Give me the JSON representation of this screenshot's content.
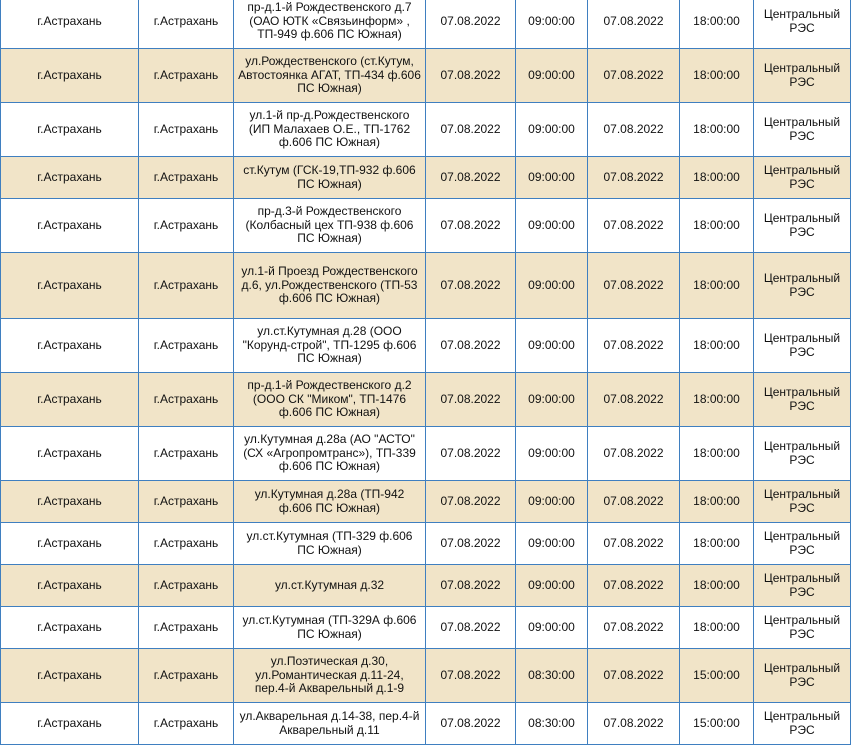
{
  "rows": [
    {
      "locality": "г.Астрахань",
      "city": "г.Астрахань",
      "address": "пр-д.1-й Рождественского д.7 (ОАО ЮТК «Связьинформ» , ТП-949 ф.606 ПС Южная)",
      "start_date": "07.08.2022",
      "start_time": "09:00:00",
      "end_date": "07.08.2022",
      "end_time": "18:00:00",
      "res": "Центральный РЭС"
    },
    {
      "locality": "г.Астрахань",
      "city": "г.Астрахань",
      "address": "ул.Рождественского (ст.Кутум, Автостоянка АГАТ, ТП-434 ф.606 ПС Южная)",
      "start_date": "07.08.2022",
      "start_time": "09:00:00",
      "end_date": "07.08.2022",
      "end_time": "18:00:00",
      "res": "Центральный РЭС"
    },
    {
      "locality": "г.Астрахань",
      "city": "г.Астрахань",
      "address": "ул.1-й пр-д.Рождественского (ИП Малахаев О.Е., ТП-1762 ф.606 ПС Южная)",
      "start_date": "07.08.2022",
      "start_time": "09:00:00",
      "end_date": "07.08.2022",
      "end_time": "18:00:00",
      "res": "Центральный РЭС"
    },
    {
      "locality": "г.Астрахань",
      "city": "г.Астрахань",
      "address": "ст.Кутум (ГСК-19,ТП-932 ф.606 ПС Южная)",
      "start_date": "07.08.2022",
      "start_time": "09:00:00",
      "end_date": "07.08.2022",
      "end_time": "18:00:00",
      "res": "Центральный РЭС"
    },
    {
      "locality": "г.Астрахань",
      "city": "г.Астрахань",
      "address": "пр-д.3-й Рождественского (Колбасный цех ТП-938 ф.606 ПС Южная)",
      "start_date": "07.08.2022",
      "start_time": "09:00:00",
      "end_date": "07.08.2022",
      "end_time": "18:00:00",
      "res": "Центральный РЭС"
    },
    {
      "locality": "г.Астрахань",
      "city": "г.Астрахань",
      "address": "ул.1-й Проезд Рождественского д.6, ул.Рождественского (ТП-53 ф.606 ПС Южная)",
      "start_date": "07.08.2022",
      "start_time": "09:00:00",
      "end_date": "07.08.2022",
      "end_time": "18:00:00",
      "res": "Центральный РЭС"
    },
    {
      "locality": "г.Астрахань",
      "city": "г.Астрахань",
      "address": "ул.ст.Кутумная д.28 (ООО \"Корунд-строй\", ТП-1295 ф.606 ПС Южная)",
      "start_date": "07.08.2022",
      "start_time": "09:00:00",
      "end_date": "07.08.2022",
      "end_time": "18:00:00",
      "res": "Центральный РЭС"
    },
    {
      "locality": "г.Астрахань",
      "city": "г.Астрахань",
      "address": "пр-д.1-й Рождественского д.2 (ООО СК \"Миком\", ТП-1476 ф.606 ПС Южная)",
      "start_date": "07.08.2022",
      "start_time": "09:00:00",
      "end_date": "07.08.2022",
      "end_time": "18:00:00",
      "res": "Центральный РЭС"
    },
    {
      "locality": "г.Астрахань",
      "city": "г.Астрахань",
      "address": "ул.Кутумная д.28а (АО \"АСТО\" (СХ «Агропромтранс»), ТП-339 ф.606 ПС Южная)",
      "start_date": "07.08.2022",
      "start_time": "09:00:00",
      "end_date": "07.08.2022",
      "end_time": "18:00:00",
      "res": "Центральный РЭС"
    },
    {
      "locality": "г.Астрахань",
      "city": "г.Астрахань",
      "address": "ул.Кутумная д.28а (ТП-942 ф.606 ПС Южная)",
      "start_date": "07.08.2022",
      "start_time": "09:00:00",
      "end_date": "07.08.2022",
      "end_time": "18:00:00",
      "res": "Центральный РЭС"
    },
    {
      "locality": "г.Астрахань",
      "city": "г.Астрахань",
      "address": "ул.ст.Кутумная (ТП-329 ф.606 ПС Южная)",
      "start_date": "07.08.2022",
      "start_time": "09:00:00",
      "end_date": "07.08.2022",
      "end_time": "18:00:00",
      "res": "Центральный РЭС"
    },
    {
      "locality": "г.Астрахань",
      "city": "г.Астрахань",
      "address": "ул.ст.Кутумная д.32",
      "start_date": "07.08.2022",
      "start_time": "09:00:00",
      "end_date": "07.08.2022",
      "end_time": "18:00:00",
      "res": "Центральный РЭС"
    },
    {
      "locality": "г.Астрахань",
      "city": "г.Астрахань",
      "address": "ул.ст.Кутумная (ТП-329А ф.606 ПС Южная)",
      "start_date": "07.08.2022",
      "start_time": "09:00:00",
      "end_date": "07.08.2022",
      "end_time": "18:00:00",
      "res": "Центральный РЭС"
    },
    {
      "locality": "г.Астрахань",
      "city": "г.Астрахань",
      "address": "ул.Поэтическая д.30, ул.Романтическая д.11-24, пер.4-й Акварельный д.1-9",
      "start_date": "07.08.2022",
      "start_time": "08:30:00",
      "end_date": "07.08.2022",
      "end_time": "15:00:00",
      "res": "Центральный РЭС"
    },
    {
      "locality": "г.Астрахань",
      "city": "г.Астрахань",
      "address": "ул.Акварельная д.14-38, пер.4-й Акварельный д.11",
      "start_date": "07.08.2022",
      "start_time": "08:30:00",
      "end_date": "07.08.2022",
      "end_time": "15:00:00",
      "res": "Центральный РЭС"
    }
  ]
}
